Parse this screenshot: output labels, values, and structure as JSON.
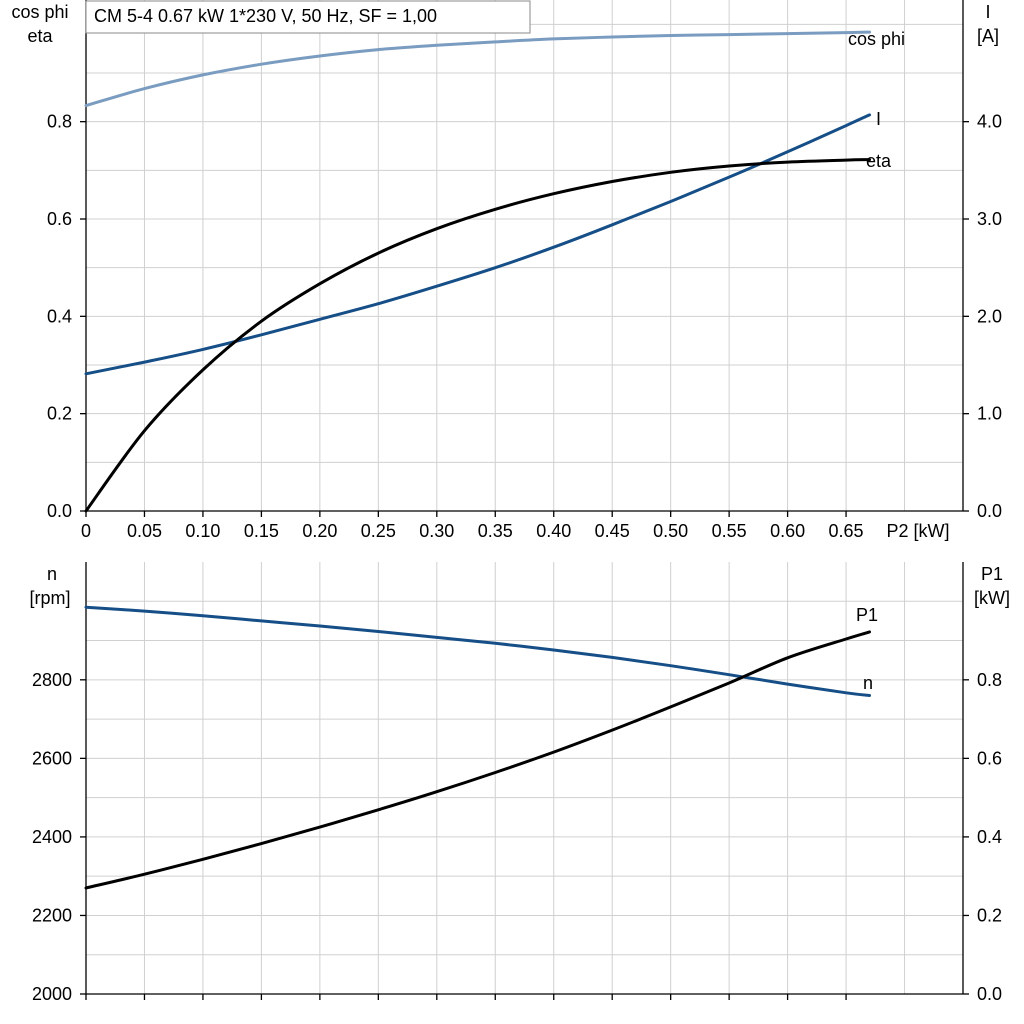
{
  "title": "CM 5-4   0.67 kW   1*230 V, 50 Hz, SF = 1,00",
  "colors": {
    "cos_phi": "#7a9cc0",
    "I": "#164f87",
    "eta": "#000000",
    "n": "#164f87",
    "P1": "#000000",
    "grid": "#d0d0d0"
  },
  "chart_data": [
    {
      "type": "line",
      "x": [
        0,
        0.05,
        0.1,
        0.15,
        0.2,
        0.25,
        0.3,
        0.35,
        0.4,
        0.45,
        0.5,
        0.55,
        0.6,
        0.65,
        0.67
      ],
      "xlabel": "P2 [kW]",
      "xlim": [
        0,
        0.75
      ],
      "xticks": [
        "0",
        "0.05",
        "0.10",
        "0.15",
        "0.20",
        "0.25",
        "0.30",
        "0.35",
        "0.40",
        "0.45",
        "0.50",
        "0.55",
        "0.60",
        "0.65"
      ],
      "ylabel_left": [
        "cos phi",
        "eta"
      ],
      "ylim_left": [
        0,
        1.05
      ],
      "yticks_left": [
        "0.0",
        "0.2",
        "0.4",
        "0.6",
        "0.8"
      ],
      "ylabel_right": [
        "I",
        "[A]"
      ],
      "ylim_right": [
        0,
        5.25
      ],
      "yticks_right": [
        "0.0",
        "1.0",
        "2.0",
        "3.0",
        "4.0"
      ],
      "grid": true,
      "series": [
        {
          "name": "cos phi",
          "axis": "left",
          "values": [
            0.833,
            0.868,
            0.896,
            0.918,
            0.935,
            0.948,
            0.957,
            0.964,
            0.97,
            0.974,
            0.977,
            0.979,
            0.981,
            0.983,
            0.984
          ]
        },
        {
          "name": "I",
          "axis": "right",
          "values": [
            1.41,
            1.53,
            1.66,
            1.81,
            1.97,
            2.13,
            2.31,
            2.5,
            2.71,
            2.94,
            3.18,
            3.43,
            3.69,
            3.96,
            4.07
          ]
        },
        {
          "name": "eta",
          "axis": "left",
          "values": [
            0.0,
            0.165,
            0.29,
            0.39,
            0.467,
            0.53,
            0.58,
            0.62,
            0.652,
            0.677,
            0.696,
            0.709,
            0.717,
            0.721,
            0.722
          ]
        }
      ]
    },
    {
      "type": "line",
      "x": [
        0,
        0.05,
        0.1,
        0.15,
        0.2,
        0.25,
        0.3,
        0.35,
        0.4,
        0.45,
        0.5,
        0.55,
        0.6,
        0.65,
        0.67
      ],
      "xlim": [
        0,
        0.75
      ],
      "ylabel_left": [
        "n",
        "[rpm]"
      ],
      "ylim_left": [
        2000,
        3100
      ],
      "yticks_left": [
        "2000",
        "2200",
        "2400",
        "2600",
        "2800"
      ],
      "ylabel_right": [
        "P1",
        "[kW]"
      ],
      "ylim_right": [
        0,
        1.1
      ],
      "yticks_right": [
        "0.0",
        "0.2",
        "0.4",
        "0.6",
        "0.8"
      ],
      "grid": true,
      "series": [
        {
          "name": "n",
          "axis": "left",
          "values": [
            2985,
            2975,
            2963,
            2950,
            2937,
            2923,
            2908,
            2893,
            2876,
            2857,
            2836,
            2813,
            2789,
            2767,
            2760
          ]
        },
        {
          "name": "P1",
          "axis": "right",
          "values": [
            0.27,
            0.305,
            0.343,
            0.383,
            0.425,
            0.469,
            0.515,
            0.564,
            0.616,
            0.672,
            0.731,
            0.792,
            0.856,
            0.904,
            0.922
          ]
        }
      ]
    }
  ]
}
